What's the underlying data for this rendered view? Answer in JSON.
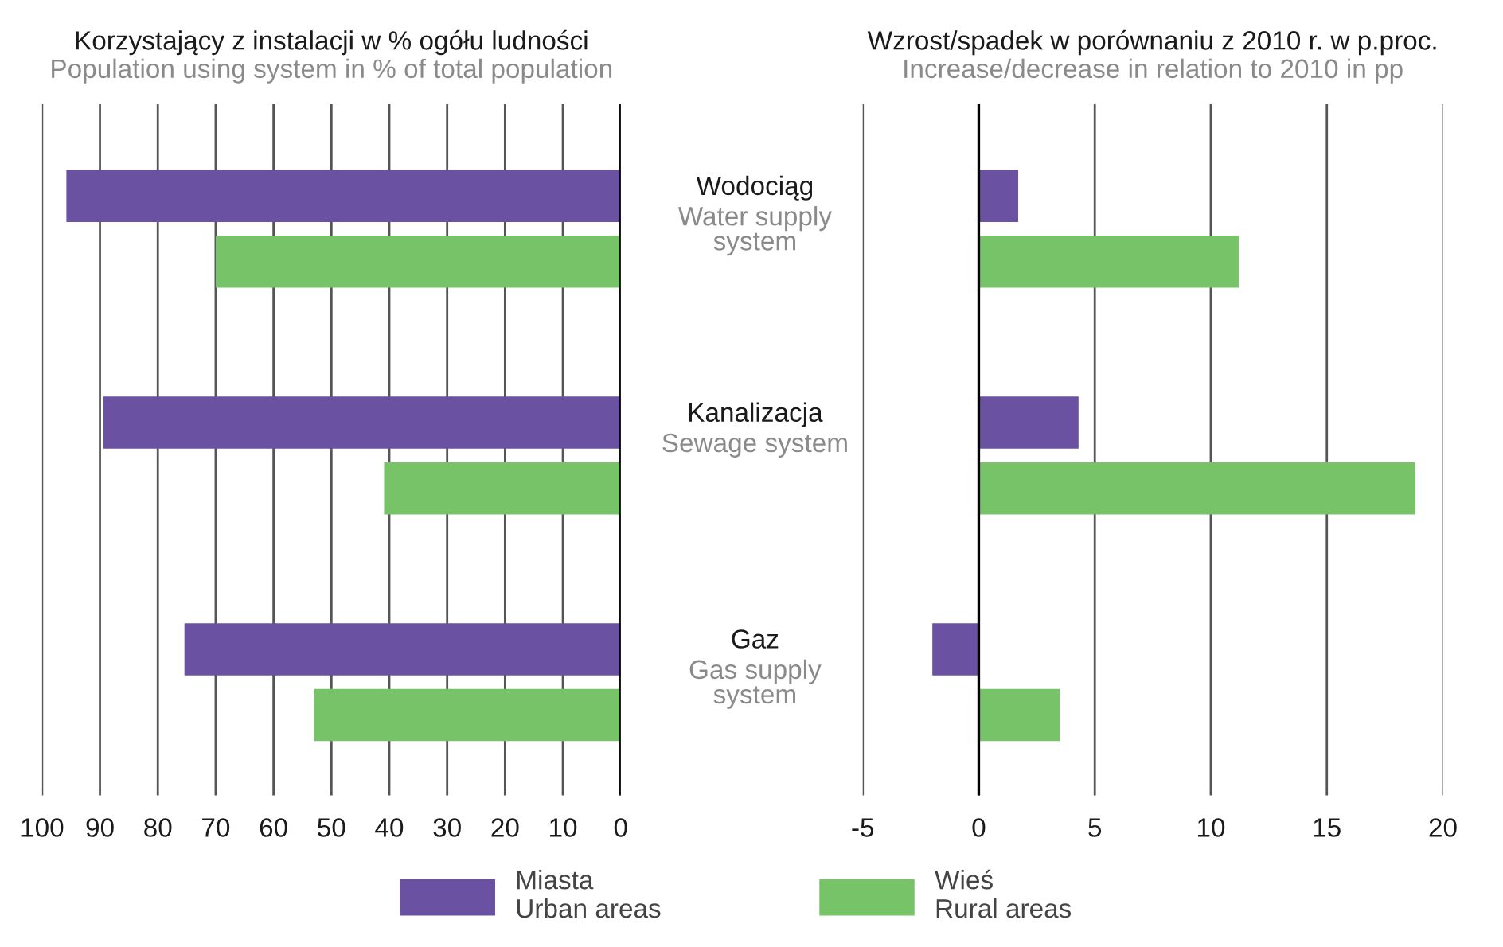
{
  "chart_data": [
    {
      "type": "bar",
      "orientation": "horizontal",
      "title": "Korzystający z instalacji w % ogółu ludności",
      "subtitle": "Population using system in % of total population",
      "categories": [
        "Wodociąg\nWater supply\nsystem",
        "Kanalizacja\nSewage system",
        "Gaz\nGas supply\nsystem"
      ],
      "series": [
        {
          "name": "Miasta\nUrban areas",
          "color": "#6b51a1",
          "values": [
            95.8,
            89.4,
            75.4
          ]
        },
        {
          "name": "Wieś\nRural areas",
          "color": "#77c368",
          "values": [
            70.0,
            40.9,
            53.0
          ]
        }
      ],
      "xlim": [
        100,
        0
      ],
      "xticks": [
        100,
        90,
        80,
        70,
        60,
        50,
        40,
        30,
        20,
        10,
        0
      ],
      "grid": "x",
      "legend": "bottom"
    },
    {
      "type": "bar",
      "orientation": "horizontal",
      "title": "Wzrost/spadek w porównaniu z 2010 r. w p.proc.",
      "subtitle": "Increase/decrease in relation to 2010 in pp",
      "categories": [
        null,
        null,
        null
      ],
      "series": [
        {
          "color": "#6b51a1",
          "values": [
            1.7,
            4.3,
            -2.0
          ]
        },
        {
          "color": "#77c368",
          "values": [
            11.2,
            18.8,
            3.5
          ]
        }
      ],
      "xlim": [
        -5,
        20
      ],
      "xticks": [
        {
          "value": -5,
          "label": "-5"
        },
        0,
        5,
        10,
        15,
        20
      ],
      "grid": "x"
    }
  ]
}
